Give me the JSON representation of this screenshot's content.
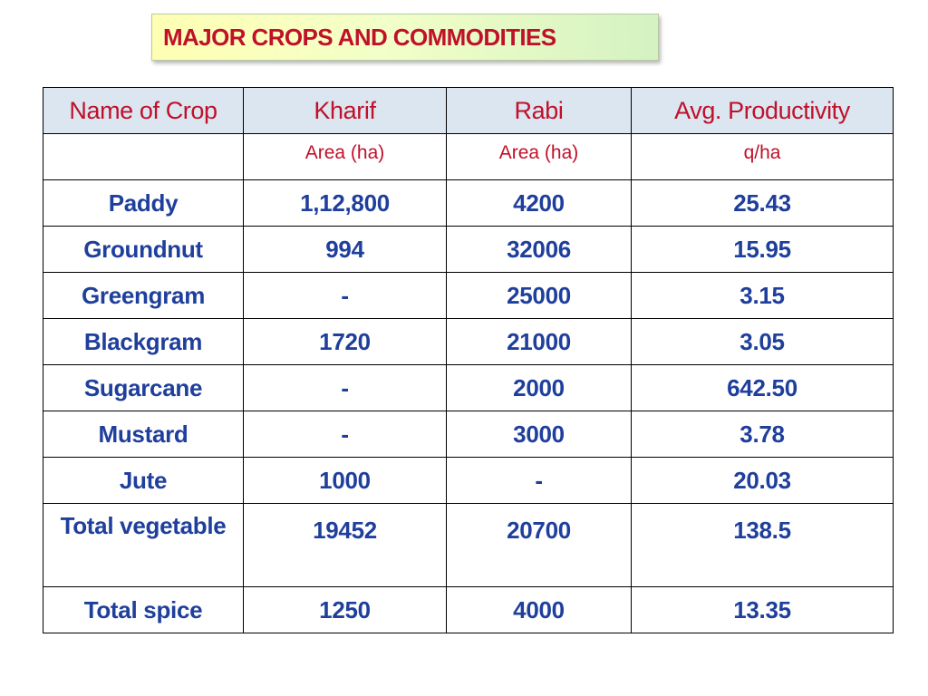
{
  "title": "MAJOR CROPS AND COMMODITIES",
  "table": {
    "headers": [
      "Name of Crop",
      "Kharif",
      "Rabi",
      "Avg. Productivity"
    ],
    "subheaders": [
      "",
      "Area (ha)",
      "Area (ha)",
      "q/ha"
    ],
    "rows": [
      {
        "crop": "Paddy",
        "kharif": "1,12,800",
        "rabi": "4200",
        "productivity": "25.43"
      },
      {
        "crop": "Groundnut",
        "kharif": "994",
        "rabi": "32006",
        "productivity": "15.95"
      },
      {
        "crop": "Greengram",
        "kharif": "-",
        "rabi": "25000",
        "productivity": "3.15"
      },
      {
        "crop": "Blackgram",
        "kharif": "1720",
        "rabi": "21000",
        "productivity": "3.05"
      },
      {
        "crop": "Sugarcane",
        "kharif": "-",
        "rabi": "2000",
        "productivity": "642.50"
      },
      {
        "crop": "Mustard",
        "kharif": "-",
        "rabi": "3000",
        "productivity": "3.78"
      },
      {
        "crop": "Jute",
        "kharif": "1000",
        "rabi": "-",
        "productivity": "20.03"
      },
      {
        "crop": "Total vegetable",
        "kharif": "19452",
        "rabi": "20700",
        "productivity": "138.5"
      },
      {
        "crop": "Total spice",
        "kharif": "1250",
        "rabi": "4000",
        "productivity": "13.35"
      }
    ]
  },
  "colors": {
    "title_text": "#c0102a",
    "header_bg": "#dbe6f1",
    "header_text": "#c0102a",
    "data_text": "#1f3f9c"
  }
}
